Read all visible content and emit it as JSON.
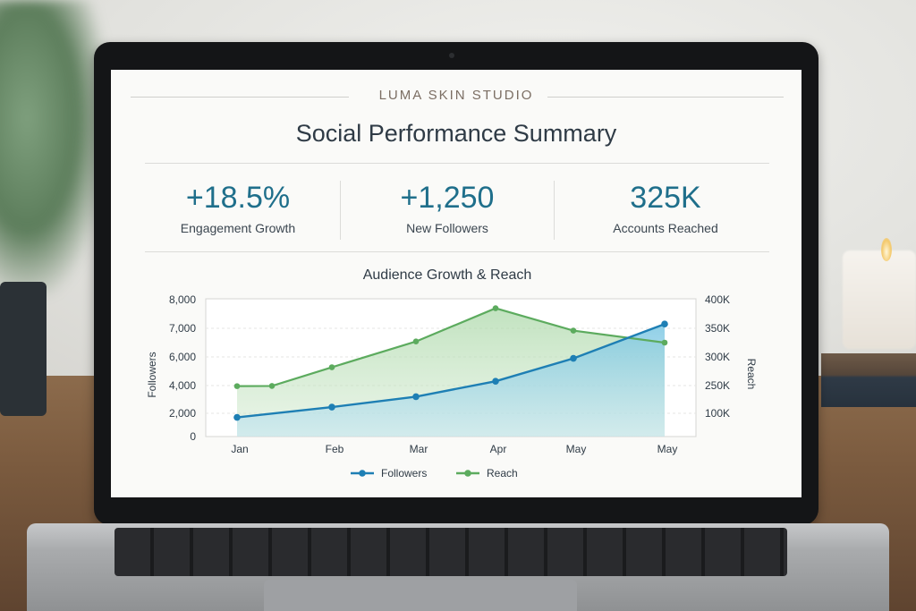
{
  "brand": "LUMA SKIN STUDIO",
  "title": "Social Performance Summary",
  "kpis": [
    {
      "value": "+18.5%",
      "label": "Engagement Growth"
    },
    {
      "value": "+1,250",
      "label": "New Followers"
    },
    {
      "value": "325K",
      "label": "Accounts Reached"
    }
  ],
  "colors": {
    "accent": "#1f6f8b",
    "followers": "#1e7fb4",
    "reach": "#5cab5e"
  },
  "chart_data": {
    "type": "line",
    "title": "Audience Growth & Reach",
    "categories": [
      "Jan",
      "Feb",
      "Mar",
      "Apr",
      "May",
      "May"
    ],
    "ylabel": "Followers",
    "y2label": "Reach",
    "y_ticks": [
      "8,000",
      "7,000",
      "6,000",
      "4,000",
      "2,000",
      "0"
    ],
    "y2_ticks": [
      "400K",
      "350K",
      "300K",
      "250K",
      "100K"
    ],
    "grid": true,
    "legend": "bottom",
    "series": [
      {
        "name": "Followers",
        "axis": "left",
        "x": [
          "Jan",
          "Feb",
          "Mar",
          "Apr",
          "May",
          "May"
        ],
        "values": [
          1650,
          2450,
          3200,
          4300,
          5900,
          7150
        ]
      },
      {
        "name": "Reach",
        "axis": "right",
        "x": [
          "Jan",
          "Jan",
          "Feb",
          "Mar",
          "Apr",
          "May",
          "May"
        ],
        "values": [
          247000,
          248000,
          282000,
          327000,
          385000,
          346000,
          325000
        ]
      }
    ]
  }
}
